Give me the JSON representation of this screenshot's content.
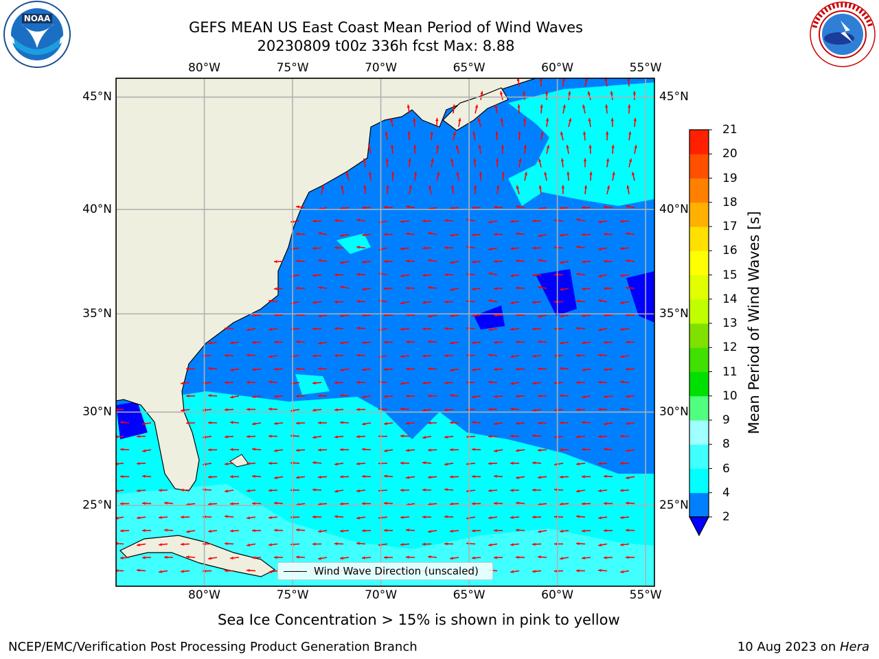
{
  "title_line1": "GEFS MEAN US East Coast Mean Period of Wind Waves",
  "title_line2": "20230809 t00z 336h fcst   Max: 8.88",
  "subtitle": "Sea Ice Concentration > 15% is shown in pink to yellow",
  "footer_left": "NCEP/EMC/Verification Post Processing Product Generation Branch",
  "footer_date": "10 Aug 2023 on ",
  "footer_machine": "Hera",
  "legend_label": "Wind Wave Direction (unscaled)",
  "logos": {
    "left": "NOAA",
    "left_ring": "NATIONAL OCEANIC AND ATMOSPHERIC ADMINISTRATION",
    "right_ring": "NATIONAL WEATHER SERVICE"
  },
  "map": {
    "lon_range": [
      -85,
      -54.5
    ],
    "lat_range": [
      20.5,
      45.8
    ],
    "lon_ticks": [
      "80°W",
      "75°W",
      "70°W",
      "65°W",
      "60°W",
      "55°W"
    ],
    "lat_ticks": [
      "45°N",
      "40°N",
      "35°N",
      "30°N",
      "25°N"
    ],
    "lon_tick_values": [
      -80,
      -75,
      -70,
      -65,
      -60,
      -55
    ],
    "lat_tick_values": [
      45,
      40,
      35,
      30,
      25
    ],
    "gridlines": true,
    "colors": {
      "land": "#efefdf",
      "ocean_low": "#0080ff",
      "ocean_mid": "#00ffff",
      "ocean_light": "#40ffff",
      "ocean_min": "#0000ff",
      "arrow": "#ff0000",
      "grid": "#b0b0b0"
    }
  },
  "colorbar": {
    "label": "Mean Period of Wind Waves [s]",
    "ticks": [
      "2",
      "4",
      "6",
      "8",
      "9",
      "10",
      "11",
      "12",
      "13",
      "14",
      "15",
      "16",
      "17",
      "18",
      "19",
      "20",
      "21"
    ],
    "tick_values": [
      2,
      4,
      6,
      8,
      9,
      10,
      11,
      12,
      13,
      14,
      15,
      16,
      17,
      18,
      19,
      20,
      21
    ],
    "colors": [
      "#0080ff",
      "#00ffff",
      "#40ffff",
      "#a0ffff",
      "#50ff80",
      "#00e000",
      "#40e000",
      "#80e000",
      "#c0ff00",
      "#e0ff00",
      "#ffff00",
      "#ffe000",
      "#ffb000",
      "#ff8000",
      "#ff5000",
      "#ff2000",
      "#ff0000"
    ],
    "extend_min_color": "#0000ff"
  }
}
